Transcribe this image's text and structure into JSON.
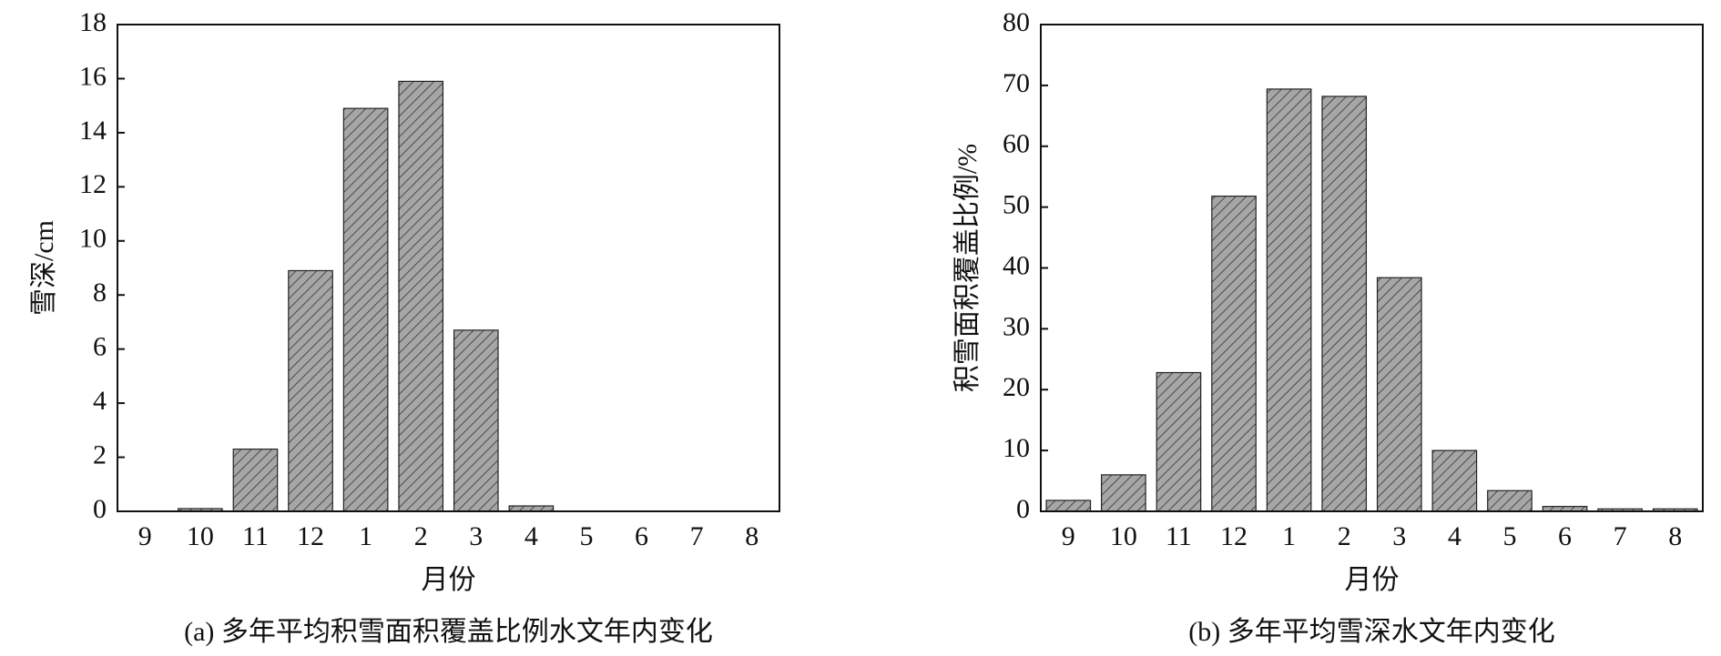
{
  "chart_data": [
    {
      "type": "bar",
      "caption": "(a) 多年平均积雪面积覆盖比例水文年内变化",
      "xlabel": "月份",
      "ylabel": "雪深/cm",
      "categories": [
        "9",
        "10",
        "11",
        "12",
        "1",
        "2",
        "3",
        "4",
        "5",
        "6",
        "7",
        "8"
      ],
      "values": [
        0,
        0.1,
        2.3,
        8.9,
        14.9,
        15.9,
        6.7,
        0.2,
        0,
        0,
        0,
        0
      ],
      "color": "#a6a6a6",
      "ylim": [
        0,
        18
      ],
      "yticks": [
        0,
        2,
        4,
        6,
        8,
        10,
        12,
        14,
        16,
        18
      ]
    },
    {
      "type": "bar",
      "caption": "(b) 多年平均雪深水文年内变化",
      "xlabel": "月份",
      "ylabel": "积雪面积覆盖比例/%",
      "categories": [
        "9",
        "10",
        "11",
        "12",
        "1",
        "2",
        "3",
        "4",
        "5",
        "6",
        "7",
        "8"
      ],
      "values": [
        1.8,
        6,
        22.8,
        51.8,
        69.4,
        68.2,
        38.4,
        10,
        3.4,
        0.8,
        0.4,
        0.4
      ],
      "color": "#a6a6a6",
      "ylim": [
        0,
        80
      ],
      "yticks": [
        0,
        10,
        20,
        30,
        40,
        50,
        60,
        70,
        80
      ]
    }
  ]
}
